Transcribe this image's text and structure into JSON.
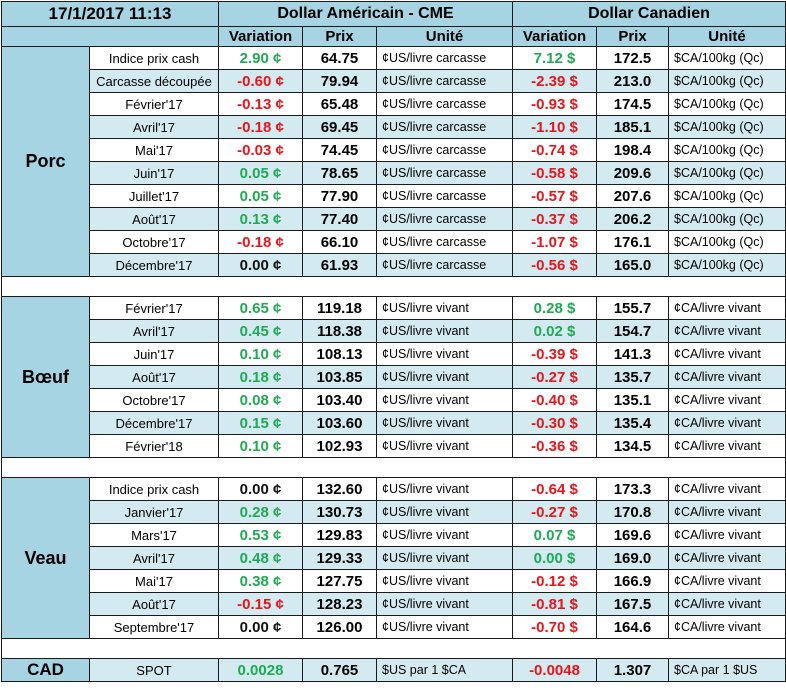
{
  "header": {
    "datetime": "17/1/2017 11:13",
    "usd_title": "Dollar Américain - CME",
    "cad_title": "Dollar Canadien",
    "col_variation": "Variation",
    "col_prix": "Prix",
    "col_unite": "Unité"
  },
  "colors": {
    "header_bg": "#a6d4e2",
    "row_alt_bg": "#d3eaf1",
    "positive": "#1faa54",
    "negative": "#e8151b"
  },
  "groups": [
    {
      "name": "Porc",
      "rows": [
        {
          "label": "Indice prix cash",
          "usd_var": "2.90 ¢",
          "usd_var_sign": "pos",
          "usd_price": "64.75",
          "usd_unit": "¢US/livre carcasse",
          "cad_var": "7.12 $",
          "cad_var_sign": "pos",
          "cad_price": "172.5",
          "cad_unit": "$CA/100kg (Qc)"
        },
        {
          "label": "Carcasse découpée",
          "usd_var": "-0.60 ¢",
          "usd_var_sign": "neg",
          "usd_price": "79.94",
          "usd_unit": "¢US/livre carcasse",
          "cad_var": "-2.39 $",
          "cad_var_sign": "neg",
          "cad_price": "213.0",
          "cad_unit": "$CA/100kg (Qc)"
        },
        {
          "label": "Février'17",
          "usd_var": "-0.13 ¢",
          "usd_var_sign": "neg",
          "usd_price": "65.48",
          "usd_unit": "¢US/livre carcasse",
          "cad_var": "-0.93 $",
          "cad_var_sign": "neg",
          "cad_price": "174.5",
          "cad_unit": "$CA/100kg (Qc)"
        },
        {
          "label": "Avril'17",
          "usd_var": "-0.18 ¢",
          "usd_var_sign": "neg",
          "usd_price": "69.45",
          "usd_unit": "¢US/livre carcasse",
          "cad_var": "-1.10 $",
          "cad_var_sign": "neg",
          "cad_price": "185.1",
          "cad_unit": "$CA/100kg (Qc)"
        },
        {
          "label": "Mai'17",
          "usd_var": "-0.03 ¢",
          "usd_var_sign": "neg",
          "usd_price": "74.45",
          "usd_unit": "¢US/livre carcasse",
          "cad_var": "-0.74 $",
          "cad_var_sign": "neg",
          "cad_price": "198.4",
          "cad_unit": "$CA/100kg (Qc)"
        },
        {
          "label": "Juin'17",
          "usd_var": "0.05 ¢",
          "usd_var_sign": "pos",
          "usd_price": "78.65",
          "usd_unit": "¢US/livre carcasse",
          "cad_var": "-0.58 $",
          "cad_var_sign": "neg",
          "cad_price": "209.6",
          "cad_unit": "$CA/100kg (Qc)"
        },
        {
          "label": "Juillet'17",
          "usd_var": "0.05 ¢",
          "usd_var_sign": "pos",
          "usd_price": "77.90",
          "usd_unit": "¢US/livre carcasse",
          "cad_var": "-0.57 $",
          "cad_var_sign": "neg",
          "cad_price": "207.6",
          "cad_unit": "$CA/100kg (Qc)"
        },
        {
          "label": "Août'17",
          "usd_var": "0.13 ¢",
          "usd_var_sign": "pos",
          "usd_price": "77.40",
          "usd_unit": "¢US/livre carcasse",
          "cad_var": "-0.37 $",
          "cad_var_sign": "neg",
          "cad_price": "206.2",
          "cad_unit": "$CA/100kg (Qc)"
        },
        {
          "label": "Octobre'17",
          "usd_var": "-0.18 ¢",
          "usd_var_sign": "neg",
          "usd_price": "66.10",
          "usd_unit": "¢US/livre carcasse",
          "cad_var": "-1.07 $",
          "cad_var_sign": "neg",
          "cad_price": "176.1",
          "cad_unit": "$CA/100kg (Qc)"
        },
        {
          "label": "Décembre'17",
          "usd_var": "0.00 ¢",
          "usd_var_sign": "neu",
          "usd_price": "61.93",
          "usd_unit": "¢US/livre carcasse",
          "cad_var": "-0.56 $",
          "cad_var_sign": "neg",
          "cad_price": "165.0",
          "cad_unit": "$CA/100kg (Qc)"
        }
      ]
    },
    {
      "name": "Bœuf",
      "rows": [
        {
          "label": "Février'17",
          "usd_var": "0.65 ¢",
          "usd_var_sign": "pos",
          "usd_price": "119.18",
          "usd_unit": "¢US/livre vivant",
          "cad_var": "0.28 $",
          "cad_var_sign": "pos",
          "cad_price": "155.7",
          "cad_unit": "¢CA/livre vivant"
        },
        {
          "label": "Avril'17",
          "usd_var": "0.45 ¢",
          "usd_var_sign": "pos",
          "usd_price": "118.38",
          "usd_unit": "¢US/livre vivant",
          "cad_var": "0.02 $",
          "cad_var_sign": "pos",
          "cad_price": "154.7",
          "cad_unit": "¢CA/livre vivant"
        },
        {
          "label": "Juin'17",
          "usd_var": "0.10 ¢",
          "usd_var_sign": "pos",
          "usd_price": "108.13",
          "usd_unit": "¢US/livre vivant",
          "cad_var": "-0.39 $",
          "cad_var_sign": "neg",
          "cad_price": "141.3",
          "cad_unit": "¢CA/livre vivant"
        },
        {
          "label": "Août'17",
          "usd_var": "0.18 ¢",
          "usd_var_sign": "pos",
          "usd_price": "103.85",
          "usd_unit": "¢US/livre vivant",
          "cad_var": "-0.27 $",
          "cad_var_sign": "neg",
          "cad_price": "135.7",
          "cad_unit": "¢CA/livre vivant"
        },
        {
          "label": "Octobre'17",
          "usd_var": "0.08 ¢",
          "usd_var_sign": "pos",
          "usd_price": "103.40",
          "usd_unit": "¢US/livre vivant",
          "cad_var": "-0.40 $",
          "cad_var_sign": "neg",
          "cad_price": "135.1",
          "cad_unit": "¢CA/livre vivant"
        },
        {
          "label": "Décembre'17",
          "usd_var": "0.15 ¢",
          "usd_var_sign": "pos",
          "usd_price": "103.60",
          "usd_unit": "¢US/livre vivant",
          "cad_var": "-0.30 $",
          "cad_var_sign": "neg",
          "cad_price": "135.4",
          "cad_unit": "¢CA/livre vivant"
        },
        {
          "label": "Février'18",
          "usd_var": "0.10 ¢",
          "usd_var_sign": "pos",
          "usd_price": "102.93",
          "usd_unit": "¢US/livre vivant",
          "cad_var": "-0.36 $",
          "cad_var_sign": "neg",
          "cad_price": "134.5",
          "cad_unit": "¢CA/livre vivant"
        }
      ]
    },
    {
      "name": "Veau",
      "rows": [
        {
          "label": "Indice prix cash",
          "usd_var": "0.00 ¢",
          "usd_var_sign": "neu",
          "usd_price": "132.60",
          "usd_unit": "¢US/livre vivant",
          "cad_var": "-0.64 $",
          "cad_var_sign": "neg",
          "cad_price": "173.3",
          "cad_unit": "¢CA/livre vivant"
        },
        {
          "label": "Janvier'17",
          "usd_var": "0.28 ¢",
          "usd_var_sign": "pos",
          "usd_price": "130.73",
          "usd_unit": "¢US/livre vivant",
          "cad_var": "-0.27 $",
          "cad_var_sign": "neg",
          "cad_price": "170.8",
          "cad_unit": "¢CA/livre vivant"
        },
        {
          "label": "Mars'17",
          "usd_var": "0.53 ¢",
          "usd_var_sign": "pos",
          "usd_price": "129.83",
          "usd_unit": "¢US/livre vivant",
          "cad_var": "0.07 $",
          "cad_var_sign": "pos",
          "cad_price": "169.6",
          "cad_unit": "¢CA/livre vivant"
        },
        {
          "label": "Avril'17",
          "usd_var": "0.48 ¢",
          "usd_var_sign": "pos",
          "usd_price": "129.33",
          "usd_unit": "¢US/livre vivant",
          "cad_var": "0.00 $",
          "cad_var_sign": "pos",
          "cad_price": "169.0",
          "cad_unit": "¢CA/livre vivant"
        },
        {
          "label": "Mai'17",
          "usd_var": "0.38 ¢",
          "usd_var_sign": "pos",
          "usd_price": "127.75",
          "usd_unit": "¢US/livre vivant",
          "cad_var": "-0.12 $",
          "cad_var_sign": "neg",
          "cad_price": "166.9",
          "cad_unit": "¢CA/livre vivant"
        },
        {
          "label": "Août'17",
          "usd_var": "-0.15 ¢",
          "usd_var_sign": "neg",
          "usd_price": "128.23",
          "usd_unit": "¢US/livre vivant",
          "cad_var": "-0.81 $",
          "cad_var_sign": "neg",
          "cad_price": "167.5",
          "cad_unit": "¢CA/livre vivant"
        },
        {
          "label": "Septembre'17",
          "usd_var": "0.00 ¢",
          "usd_var_sign": "neu",
          "usd_price": "126.00",
          "usd_unit": "¢US/livre vivant",
          "cad_var": "-0.70 $",
          "cad_var_sign": "neg",
          "cad_price": "164.6",
          "cad_unit": "¢CA/livre vivant"
        }
      ]
    }
  ],
  "cad": {
    "name": "CAD",
    "label": "SPOT",
    "usd_var": "0.0028",
    "usd_var_sign": "pos",
    "usd_price": "0.765",
    "usd_unit": "$US par 1 $CA",
    "cad_var": "-0.0048",
    "cad_var_sign": "neg",
    "cad_price": "1.307",
    "cad_unit": "$CA par 1 $US"
  }
}
